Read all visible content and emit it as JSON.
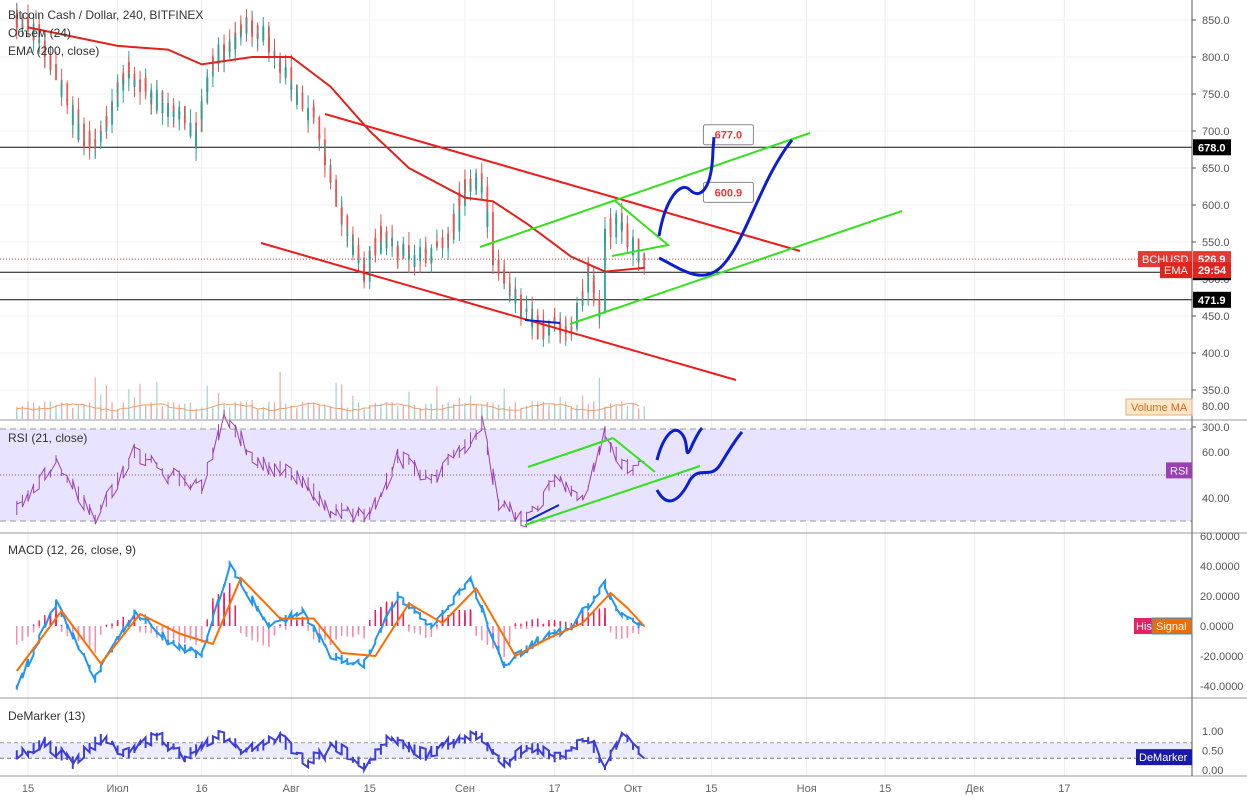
{
  "chart_data": [
    {
      "type": "line",
      "pane": "price",
      "title": "Bitcoin Cash / Dollar, 240, BITFINEX",
      "subtitles": [
        "Объем (24)",
        "EMA (200, close)"
      ],
      "ylim": [
        270,
        880
      ],
      "y_ticks": [
        850,
        800,
        750,
        700,
        650,
        600,
        550,
        500,
        450,
        400,
        350,
        300
      ],
      "y_tick_labels": [
        "850.0",
        "800.0",
        "750.0",
        "700.0",
        "650.0",
        "600.0",
        "550.0",
        "500.0",
        "450.0",
        "400.0",
        "350.0",
        "300.0"
      ],
      "x_ticks": [
        {
          "x": "2018-06-15",
          "label": "15"
        },
        {
          "x": "2018-07-01",
          "label": "Июл"
        },
        {
          "x": "2018-07-16",
          "label": "16"
        },
        {
          "x": "2018-08-01",
          "label": "Авг"
        },
        {
          "x": "2018-08-15",
          "label": "15"
        },
        {
          "x": "2018-09-01",
          "label": "Сен"
        },
        {
          "x": "2018-09-17",
          "label": "17"
        },
        {
          "x": "2018-10-01",
          "label": "Окт"
        },
        {
          "x": "2018-10-15",
          "label": "15"
        },
        {
          "x": "2018-11-01",
          "label": "Ноя"
        },
        {
          "x": "2018-11-15",
          "label": "15"
        },
        {
          "x": "2018-12-01",
          "label": "Дек"
        },
        {
          "x": "2018-12-17",
          "label": "17"
        }
      ],
      "series": [
        {
          "name": "BCHUSD",
          "values": [
            {
              "x": "2018-06-13",
              "y": 850
            },
            {
              "x": "2018-06-17",
              "y": 830
            },
            {
              "x": "2018-06-21",
              "y": 760
            },
            {
              "x": "2018-06-24",
              "y": 700
            },
            {
              "x": "2018-06-27",
              "y": 680
            },
            {
              "x": "2018-06-30",
              "y": 740
            },
            {
              "x": "2018-07-03",
              "y": 780
            },
            {
              "x": "2018-07-06",
              "y": 760
            },
            {
              "x": "2018-07-09",
              "y": 730
            },
            {
              "x": "2018-07-12",
              "y": 720
            },
            {
              "x": "2018-07-15",
              "y": 690
            },
            {
              "x": "2018-07-18",
              "y": 800
            },
            {
              "x": "2018-07-21",
              "y": 810
            },
            {
              "x": "2018-07-24",
              "y": 840
            },
            {
              "x": "2018-07-27",
              "y": 830
            },
            {
              "x": "2018-07-30",
              "y": 790
            },
            {
              "x": "2018-08-02",
              "y": 740
            },
            {
              "x": "2018-08-05",
              "y": 720
            },
            {
              "x": "2018-08-08",
              "y": 630
            },
            {
              "x": "2018-08-11",
              "y": 560
            },
            {
              "x": "2018-08-14",
              "y": 510
            },
            {
              "x": "2018-08-17",
              "y": 560
            },
            {
              "x": "2018-08-20",
              "y": 540
            },
            {
              "x": "2018-08-23",
              "y": 530
            },
            {
              "x": "2018-08-26",
              "y": 535
            },
            {
              "x": "2018-08-29",
              "y": 550
            },
            {
              "x": "2018-09-01",
              "y": 630
            },
            {
              "x": "2018-09-04",
              "y": 630
            },
            {
              "x": "2018-09-06",
              "y": 530
            },
            {
              "x": "2018-09-08",
              "y": 500
            },
            {
              "x": "2018-09-11",
              "y": 460
            },
            {
              "x": "2018-09-14",
              "y": 430
            },
            {
              "x": "2018-09-17",
              "y": 440
            },
            {
              "x": "2018-09-20",
              "y": 430
            },
            {
              "x": "2018-09-23",
              "y": 510
            },
            {
              "x": "2018-09-25",
              "y": 460
            },
            {
              "x": "2018-09-26",
              "y": 560
            },
            {
              "x": "2018-09-28",
              "y": 580
            },
            {
              "x": "2018-10-01",
              "y": 540
            },
            {
              "x": "2018-10-03",
              "y": 526.9
            }
          ]
        },
        {
          "name": "EMA",
          "values": [
            {
              "x": "2018-06-15",
              "y": 840
            },
            {
              "x": "2018-07-01",
              "y": 815
            },
            {
              "x": "2018-07-10",
              "y": 810
            },
            {
              "x": "2018-07-16",
              "y": 790
            },
            {
              "x": "2018-07-25",
              "y": 800
            },
            {
              "x": "2018-08-01",
              "y": 800
            },
            {
              "x": "2018-08-08",
              "y": 760
            },
            {
              "x": "2018-08-15",
              "y": 700
            },
            {
              "x": "2018-08-22",
              "y": 650
            },
            {
              "x": "2018-09-01",
              "y": 610
            },
            {
              "x": "2018-09-06",
              "y": 605
            },
            {
              "x": "2018-09-12",
              "y": 575
            },
            {
              "x": "2018-09-20",
              "y": 530
            },
            {
              "x": "2018-09-26",
              "y": 510
            },
            {
              "x": "2018-10-03",
              "y": 515
            }
          ]
        }
      ],
      "price_labels": [
        {
          "value": 678.0,
          "text": "678.0"
        },
        {
          "value": 526.9,
          "text": "526.9",
          "tag": "BCHUSD"
        },
        {
          "value": 509.2,
          "text": "509.2"
        },
        {
          "value": 471.9,
          "text": "471.9"
        },
        {
          "value": 512,
          "text": "29:54",
          "tag": "EMA"
        }
      ],
      "horizontal_lines": [
        678.0,
        509.2,
        471.9
      ],
      "annotations": [
        {
          "text": "677.0",
          "x": "2018-10-10",
          "y": 695
        },
        {
          "text": "600.9",
          "x": "2018-10-10",
          "y": 617
        }
      ],
      "volume_label": "Volume MA"
    },
    {
      "type": "line",
      "pane": "rsi",
      "title": "RSI (21, close)",
      "ylim": [
        25,
        82
      ],
      "y_ticks": [
        80,
        60,
        40
      ],
      "y_tick_labels": [
        "80.00",
        "60.00",
        "40.00"
      ],
      "band": [
        30,
        70
      ],
      "series": [
        {
          "name": "RSI",
          "values": [
            {
              "x": "2018-06-13",
              "y": 35
            },
            {
              "x": "2018-06-20",
              "y": 55
            },
            {
              "x": "2018-06-27",
              "y": 32
            },
            {
              "x": "2018-07-04",
              "y": 60
            },
            {
              "x": "2018-07-10",
              "y": 50
            },
            {
              "x": "2018-07-16",
              "y": 45
            },
            {
              "x": "2018-07-20",
              "y": 76
            },
            {
              "x": "2018-07-26",
              "y": 55
            },
            {
              "x": "2018-08-02",
              "y": 50
            },
            {
              "x": "2018-08-08",
              "y": 35
            },
            {
              "x": "2018-08-15",
              "y": 32
            },
            {
              "x": "2018-08-20",
              "y": 58
            },
            {
              "x": "2018-08-26",
              "y": 48
            },
            {
              "x": "2018-09-01",
              "y": 62
            },
            {
              "x": "2018-09-04",
              "y": 72
            },
            {
              "x": "2018-09-07",
              "y": 38
            },
            {
              "x": "2018-09-12",
              "y": 30
            },
            {
              "x": "2018-09-17",
              "y": 48
            },
            {
              "x": "2018-09-22",
              "y": 40
            },
            {
              "x": "2018-09-26",
              "y": 68
            },
            {
              "x": "2018-09-29",
              "y": 55
            },
            {
              "x": "2018-10-03",
              "y": 52
            }
          ]
        }
      ],
      "value_label": "RSI"
    },
    {
      "type": "line",
      "pane": "macd",
      "title": "MACD (12, 26, close, 9)",
      "ylim": [
        -48,
        62
      ],
      "y_ticks": [
        60,
        40,
        20,
        0,
        -20,
        -40
      ],
      "y_tick_labels": [
        "60.0000",
        "40.0000",
        "20.0000",
        "0.0000",
        "-20.0000",
        "-40.0000"
      ],
      "series": [
        {
          "name": "MACD",
          "values": [
            {
              "x": "2018-06-13",
              "y": -40
            },
            {
              "x": "2018-06-20",
              "y": 15
            },
            {
              "x": "2018-06-27",
              "y": -35
            },
            {
              "x": "2018-07-04",
              "y": 10
            },
            {
              "x": "2018-07-10",
              "y": -10
            },
            {
              "x": "2018-07-16",
              "y": -20
            },
            {
              "x": "2018-07-21",
              "y": 40
            },
            {
              "x": "2018-07-28",
              "y": 0
            },
            {
              "x": "2018-08-03",
              "y": 10
            },
            {
              "x": "2018-08-08",
              "y": -20
            },
            {
              "x": "2018-08-14",
              "y": -25
            },
            {
              "x": "2018-08-20",
              "y": 20
            },
            {
              "x": "2018-08-26",
              "y": 0
            },
            {
              "x": "2018-09-02",
              "y": 30
            },
            {
              "x": "2018-09-08",
              "y": -25
            },
            {
              "x": "2018-09-14",
              "y": -10
            },
            {
              "x": "2018-09-20",
              "y": 0
            },
            {
              "x": "2018-09-26",
              "y": 28
            },
            {
              "x": "2018-09-28",
              "y": 10
            },
            {
              "x": "2018-10-03",
              "y": -1
            }
          ]
        },
        {
          "name": "Signal",
          "values": [
            {
              "x": "2018-06-13",
              "y": -30
            },
            {
              "x": "2018-06-21",
              "y": 10
            },
            {
              "x": "2018-06-28",
              "y": -25
            },
            {
              "x": "2018-07-05",
              "y": 8
            },
            {
              "x": "2018-07-12",
              "y": -5
            },
            {
              "x": "2018-07-18",
              "y": -12
            },
            {
              "x": "2018-07-23",
              "y": 32
            },
            {
              "x": "2018-07-30",
              "y": 5
            },
            {
              "x": "2018-08-05",
              "y": 5
            },
            {
              "x": "2018-08-10",
              "y": -18
            },
            {
              "x": "2018-08-16",
              "y": -20
            },
            {
              "x": "2018-08-22",
              "y": 15
            },
            {
              "x": "2018-08-28",
              "y": 2
            },
            {
              "x": "2018-09-03",
              "y": 25
            },
            {
              "x": "2018-09-10",
              "y": -20
            },
            {
              "x": "2018-09-16",
              "y": -8
            },
            {
              "x": "2018-09-22",
              "y": 2
            },
            {
              "x": "2018-09-27",
              "y": 22
            },
            {
              "x": "2018-09-30",
              "y": 12
            },
            {
              "x": "2018-10-03",
              "y": 0
            }
          ]
        }
      ],
      "value_labels": [
        "His",
        "Signal"
      ]
    },
    {
      "type": "line",
      "pane": "demarker",
      "title": "DeMarker (13)",
      "ylim": [
        -0.02,
        1.05
      ],
      "y_ticks": [
        1.0,
        0.5,
        0.0
      ],
      "y_tick_labels": [
        "1.00",
        "0.50",
        "0.00"
      ],
      "band": [
        0.3,
        0.7
      ],
      "series": [
        {
          "name": "DeMarker",
          "values": [
            {
              "x": "2018-06-13",
              "y": 0.4
            },
            {
              "x": "2018-06-18",
              "y": 0.7
            },
            {
              "x": "2018-06-23",
              "y": 0.2
            },
            {
              "x": "2018-06-28",
              "y": 0.8
            },
            {
              "x": "2018-07-03",
              "y": 0.4
            },
            {
              "x": "2018-07-08",
              "y": 0.9
            },
            {
              "x": "2018-07-13",
              "y": 0.3
            },
            {
              "x": "2018-07-19",
              "y": 0.95
            },
            {
              "x": "2018-07-24",
              "y": 0.5
            },
            {
              "x": "2018-07-30",
              "y": 0.8
            },
            {
              "x": "2018-08-04",
              "y": 0.2
            },
            {
              "x": "2018-08-09",
              "y": 0.6
            },
            {
              "x": "2018-08-14",
              "y": 0.1
            },
            {
              "x": "2018-08-19",
              "y": 0.85
            },
            {
              "x": "2018-08-25",
              "y": 0.4
            },
            {
              "x": "2018-08-30",
              "y": 0.7
            },
            {
              "x": "2018-09-03",
              "y": 0.95
            },
            {
              "x": "2018-09-08",
              "y": 0.2
            },
            {
              "x": "2018-09-13",
              "y": 0.6
            },
            {
              "x": "2018-09-18",
              "y": 0.3
            },
            {
              "x": "2018-09-23",
              "y": 0.85
            },
            {
              "x": "2018-09-26",
              "y": 0.1
            },
            {
              "x": "2018-09-29",
              "y": 0.9
            },
            {
              "x": "2018-10-03",
              "y": 0.4
            }
          ]
        }
      ],
      "value_label": "DeMarker"
    }
  ],
  "colors": {
    "price_up": "#26a69a",
    "price_down": "#ef5350",
    "ema": "#e0231c",
    "rsi_line": "#9b3fb5",
    "rsi_band": "#e8e4ff",
    "macd": "#2196f3",
    "signal": "#ff6d00",
    "hist_pos": "#e91e63",
    "demarker": "#3d3ddb",
    "trend_red": "#ee1c1c",
    "trend_green": "#33e11c",
    "drawing_blue": "#0a1fcf",
    "axis_text": "#555555"
  }
}
